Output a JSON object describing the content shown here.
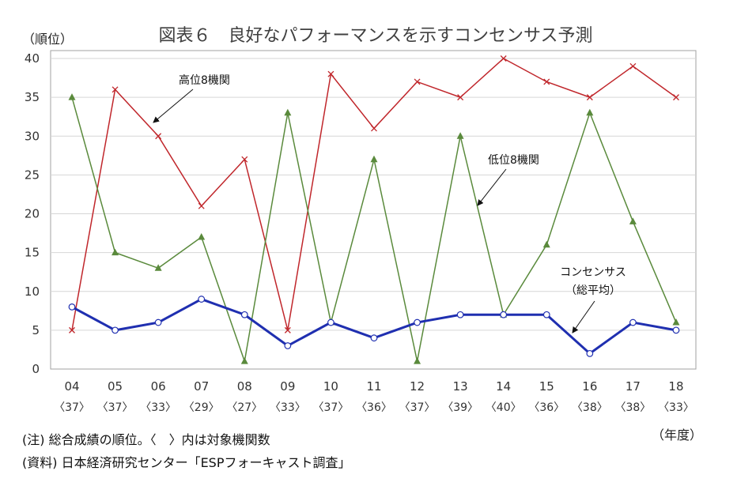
{
  "chart_data": {
    "type": "line",
    "title": "図表６　良好なパフォーマンスを示すコンセンサス予測",
    "ylabel": "（順位）",
    "xlabel": "（年度）",
    "ylim": [
      0,
      40
    ],
    "yticks": [
      "0",
      "5",
      "10",
      "15",
      "20",
      "25",
      "30",
      "35",
      "40"
    ],
    "categories": [
      "04",
      "05",
      "06",
      "07",
      "08",
      "09",
      "10",
      "11",
      "12",
      "13",
      "14",
      "15",
      "16",
      "17",
      "18"
    ],
    "sub_labels": [
      "〈37〉",
      "〈37〉",
      "〈33〉",
      "〈29〉",
      "〈27〉",
      "〈33〉",
      "〈37〉",
      "〈36〉",
      "〈37〉",
      "〈39〉",
      "〈40〉",
      "〈36〉",
      "〈38〉",
      "〈38〉",
      "〈33〉"
    ],
    "grid": true,
    "series": [
      {
        "name": "高位8機関",
        "color": "#c0262b",
        "marker": "x",
        "values": [
          5,
          36,
          30,
          21,
          27,
          5,
          38,
          31,
          37,
          35,
          40,
          37,
          35,
          39,
          35
        ]
      },
      {
        "name": "低位8機関",
        "color": "#5a8a3c",
        "marker": "triangle",
        "values": [
          35,
          15,
          13,
          17,
          1,
          33,
          6,
          27,
          1,
          30,
          7,
          16,
          33,
          19,
          6
        ]
      },
      {
        "name": "コンセンサス（総平均）",
        "label_lines": [
          "コンセンサス",
          "（総平均）"
        ],
        "color": "#1f2fb0",
        "marker": "circle",
        "values": [
          8,
          5,
          6,
          9,
          7,
          3,
          6,
          4,
          6,
          7,
          7,
          7,
          2,
          6,
          5
        ]
      }
    ]
  },
  "notes": {
    "note1": "(注) 総合成績の順位。〈　〉内は対象機関数",
    "note2": "(資料) 日本経済研究センター「ESPフォーキャスト調査」"
  }
}
